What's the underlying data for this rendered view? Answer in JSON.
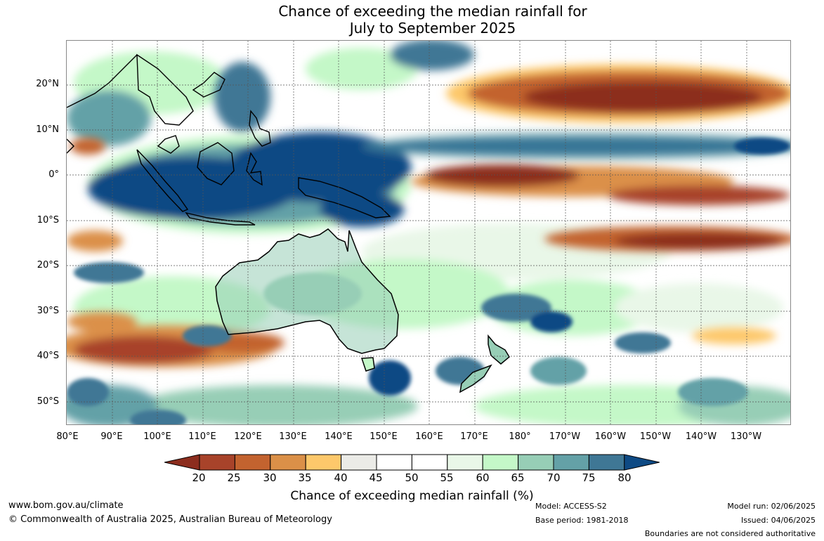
{
  "title": {
    "line1": "Chance of exceeding the median rainfall for",
    "line2": "July to September 2025"
  },
  "map": {
    "lat_labels": [
      "20°N",
      "10°N",
      "0°",
      "10°S",
      "20°S",
      "30°S",
      "40°S",
      "50°S"
    ],
    "lon_labels": [
      "80°E",
      "90°E",
      "100°E",
      "110°E",
      "120°E",
      "130°E",
      "140°E",
      "150°E",
      "160°E",
      "170°E",
      "180°",
      "170°W",
      "160°W",
      "150°W",
      "140°W",
      "130°W"
    ]
  },
  "colorbar": {
    "ticks": [
      "20",
      "25",
      "30",
      "35",
      "40",
      "45",
      "50",
      "55",
      "60",
      "65",
      "70",
      "75",
      "80"
    ],
    "colors": [
      "#8c2d1e",
      "#a8432a",
      "#c3632f",
      "#db9048",
      "#fdc86b",
      "#ebebe7",
      "#ffffff",
      "#ffffff",
      "#e9f7e8",
      "#c4f8c8",
      "#97ceb6",
      "#64a1a7",
      "#3f7795",
      "#0e4a84"
    ],
    "title": "Chance of exceeding median rainfall (%)"
  },
  "footer": {
    "website": "www.bom.gov.au/climate",
    "copyright": "© Commonwealth of Australia 2025, Australian Bureau of Meteorology",
    "model": "Model: ACCESS-S2",
    "base_period": "Base period: 1981-2018",
    "model_run": "Model run: 02/06/2025",
    "issued": "Issued: 04/06/2025",
    "disclaimer": "Boundaries are not considered authoritative"
  }
}
